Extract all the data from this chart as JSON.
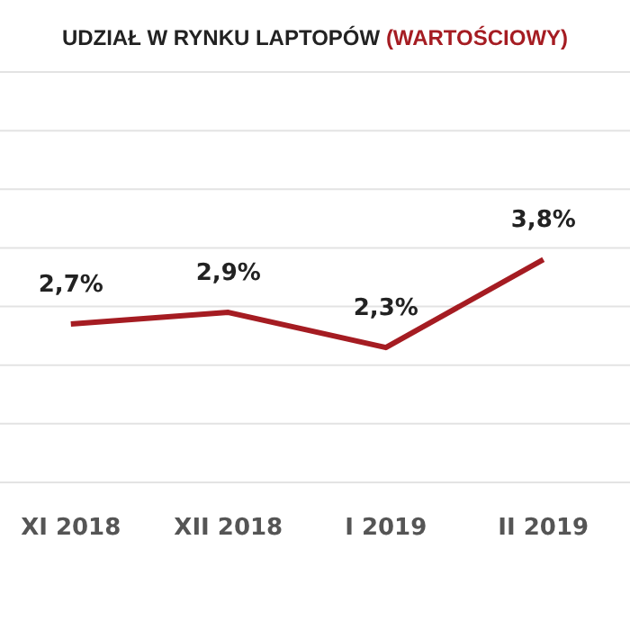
{
  "chart_data": {
    "type": "line",
    "title": "UDZIAŁ W RYNKU LAPTOPÓW (WARTOŚCIOWY)",
    "categories": [
      "XI 2018",
      "XII 2018",
      "I 2019",
      "II 2019"
    ],
    "series": [
      {
        "color": "#a51c22",
        "values": [
          2.7,
          2.9,
          2.3,
          3.8
        ],
        "value_labels": [
          "2,7%",
          "2,9%",
          "2,3%",
          "3,8%"
        ]
      }
    ],
    "ylim": [
      0,
      7
    ],
    "yticks": [
      {
        "value": 0,
        "label": null
      },
      {
        "value": 1,
        "label": null
      },
      {
        "value": 2,
        "label": null
      },
      {
        "value": 3,
        "label": null
      },
      {
        "value": 4,
        "label": null
      },
      {
        "value": 5,
        "label": null
      },
      {
        "value": 6,
        "label": null
      },
      {
        "value": 7,
        "label": null
      }
    ],
    "grid": "y",
    "tick_labels": "x",
    "marker": "none",
    "line_style": "solid",
    "legend": false
  }
}
